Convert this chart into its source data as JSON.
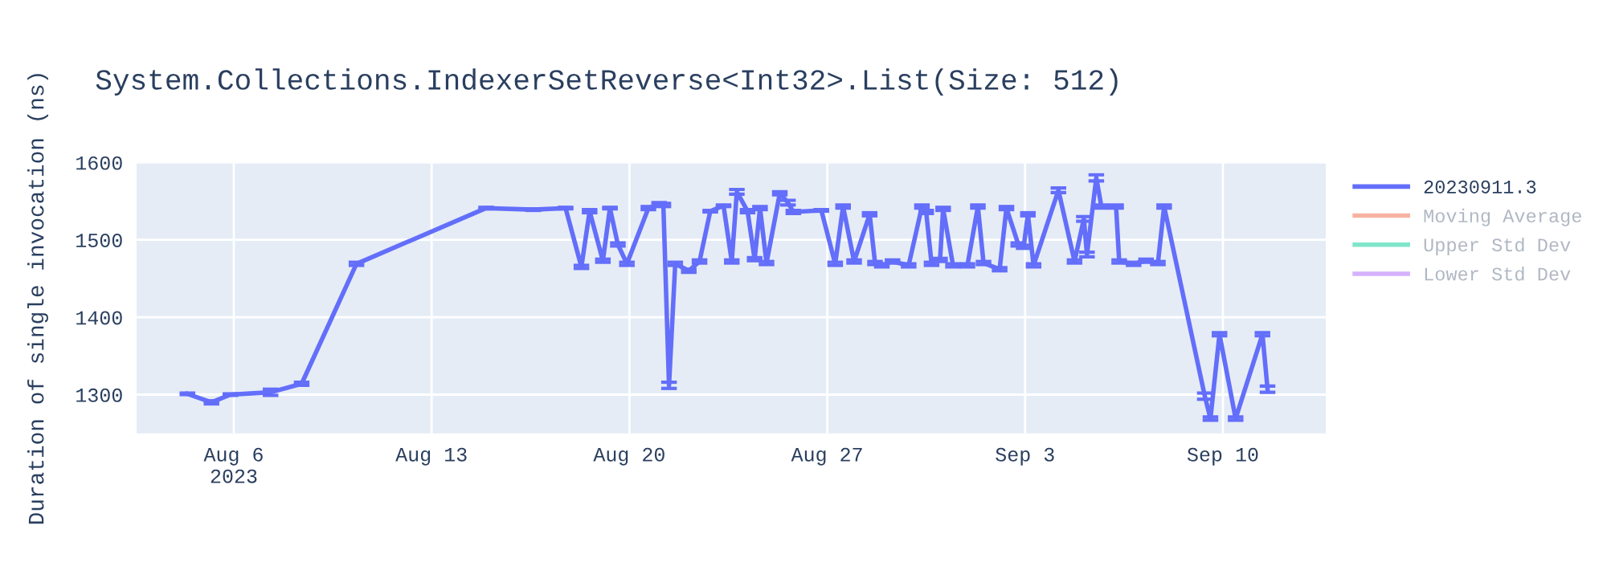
{
  "chart_data": {
    "type": "line",
    "title": "System.Collections.IndexerSetReverse<Int32>.List(Size: 512)",
    "ylabel": "Duration of single invocation (ns)",
    "xlim": [
      "2023-08-02T13:26",
      "2023-09-13T15:22"
    ],
    "xticks": [
      {
        "value": "2023-08-06",
        "label": "Aug 6\n2023"
      },
      {
        "value": "2023-08-13",
        "label": "Aug 13"
      },
      {
        "value": "2023-08-20",
        "label": "Aug 20"
      },
      {
        "value": "2023-08-27",
        "label": "Aug 27"
      },
      {
        "value": "2023-09-03",
        "label": "Sep 3"
      },
      {
        "value": "2023-09-10",
        "label": "Sep 10"
      }
    ],
    "ylim": [
      1250,
      1600
    ],
    "yticks": [
      1300,
      1400,
      1500,
      1600
    ],
    "grid": true,
    "legend": "right",
    "line_style": "solid",
    "series": [
      {
        "name": "20230911.3",
        "color": "#636efa",
        "x": [
          "2023-08-04T08:38",
          "2023-08-05T05:02",
          "2023-08-05T21:07",
          "2023-08-07T07:12",
          "2023-08-08T09:36",
          "2023-08-10T08:10",
          "2023-08-14T22:19",
          "2023-08-16T14:24",
          "2023-08-17T17:46",
          "2023-08-18T07:12",
          "2023-08-18T14:10",
          "2023-08-19T01:26",
          "2023-08-19T07:26",
          "2023-08-19T14:10",
          "2023-08-19T21:50",
          "2023-08-20T16:05",
          "2023-08-21T01:12",
          "2023-08-21T04:48",
          "2023-08-21T09:36",
          "2023-08-21T14:53",
          "2023-08-22T02:24",
          "2023-08-22T11:31",
          "2023-08-22T20:38",
          "2023-08-23T07:55",
          "2023-08-23T14:53",
          "2023-08-23T19:12",
          "2023-08-24T04:19",
          "2023-08-24T10:19",
          "2023-08-24T14:53",
          "2023-08-24T20:24",
          "2023-08-25T07:41",
          "2023-08-25T14:38",
          "2023-08-25T19:12",
          "2023-08-26T18:58",
          "2023-08-27T06:43",
          "2023-08-27T13:26",
          "2023-08-27T22:48",
          "2023-08-28T12:00",
          "2023-08-28T16:34",
          "2023-08-28T22:19",
          "2023-08-29T07:26",
          "2023-08-29T21:07",
          "2023-08-30T08:24",
          "2023-08-30T12:00",
          "2023-08-30T16:34",
          "2023-08-30T23:46",
          "2023-08-31T02:24",
          "2023-08-31T10:48",
          "2023-08-31T23:02",
          "2023-09-01T07:55",
          "2023-09-01T12:43",
          "2023-09-02T02:24",
          "2023-09-02T08:10",
          "2023-09-02T18:14",
          "2023-09-02T22:48",
          "2023-09-03T02:24",
          "2023-09-03T07:12",
          "2023-09-04T04:19",
          "2023-09-04T18:00",
          "2023-09-05T01:55",
          "2023-09-05T04:34",
          "2023-09-05T12:29",
          "2023-09-05T16:48",
          "2023-09-06T05:17",
          "2023-09-06T07:55",
          "2023-09-06T20:10",
          "2023-09-07T06:43",
          "2023-09-07T16:48",
          "2023-09-07T22:05",
          "2023-09-09T08:38",
          "2023-09-09T13:26",
          "2023-09-09T21:07",
          "2023-09-10T10:48",
          "2023-09-11T09:36",
          "2023-09-11T13:55"
        ],
        "values": [
          1301,
          1290,
          1300,
          1303,
          1314,
          1469,
          1541,
          1539,
          1541,
          1465,
          1537,
          1473,
          1541,
          1494,
          1469,
          1541,
          1546,
          1545,
          1312,
          1469,
          1460,
          1472,
          1537,
          1544,
          1472,
          1562,
          1537,
          1475,
          1541,
          1470,
          1560,
          1548,
          1536,
          1538,
          1469,
          1543,
          1472,
          1533,
          1470,
          1467,
          1472,
          1467,
          1543,
          1536,
          1469,
          1474,
          1540,
          1467,
          1467,
          1543,
          1470,
          1462,
          1541,
          1494,
          1491,
          1533,
          1467,
          1564,
          1472,
          1527,
          1481,
          1580,
          1543,
          1543,
          1472,
          1469,
          1473,
          1470,
          1543,
          1298,
          1269,
          1378,
          1269,
          1378,
          1307
        ],
        "errors": [
          1,
          2,
          1,
          4,
          2,
          2,
          1,
          1,
          1,
          2,
          2,
          2,
          1,
          2,
          2,
          2,
          2,
          2,
          4,
          2,
          2,
          2,
          1,
          1,
          2,
          3,
          2,
          2,
          2,
          2,
          2,
          3,
          2,
          1,
          2,
          2,
          2,
          2,
          2,
          2,
          2,
          2,
          2,
          2,
          2,
          2,
          2,
          2,
          2,
          2,
          2,
          2,
          2,
          2,
          2,
          2,
          2,
          3,
          2,
          3,
          3,
          4,
          2,
          2,
          2,
          2,
          2,
          2,
          2,
          4,
          2,
          2,
          2,
          2,
          4
        ]
      },
      {
        "name": "Moving Average",
        "color": "#f7b2a3"
      },
      {
        "name": "Upper Std Dev",
        "color": "#80e6cb"
      },
      {
        "name": "Lower Std Dev",
        "color": "#d5b1fd"
      }
    ]
  }
}
